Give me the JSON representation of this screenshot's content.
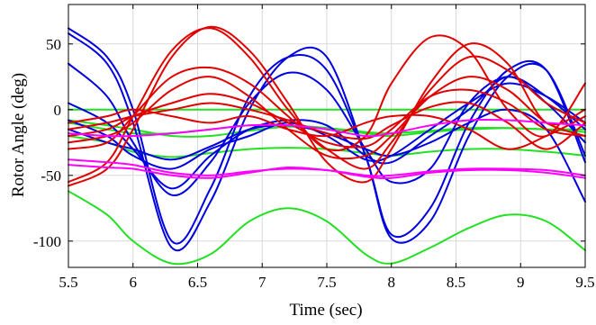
{
  "chart_data": {
    "type": "line",
    "title": "",
    "xlabel": "Time (sec)",
    "ylabel": "Rotor Angle (deg)",
    "xlim": [
      5.5,
      9.5
    ],
    "ylim": [
      -120,
      80
    ],
    "x_ticks": [
      5.5,
      6,
      6.5,
      7,
      7.5,
      8,
      8.5,
      9,
      9.5
    ],
    "x_tick_labels": [
      "5.5",
      "6",
      "6.5",
      "7",
      "7.5",
      "8",
      "8.5",
      "9",
      "9.5"
    ],
    "y_ticks": [
      -100,
      -50,
      0,
      50
    ],
    "y_tick_labels": [
      "-100",
      "-50",
      "0",
      "50"
    ],
    "grid": true,
    "legend": null,
    "colors": {
      "blue": "#0000e0",
      "red": "#e00000",
      "green": "#22e022",
      "magenta": "#ff00ff"
    },
    "series": [
      {
        "color": "blue",
        "x": [
          5.5,
          5.8,
          6.0,
          6.3,
          6.6,
          6.9,
          7.2,
          7.5,
          7.8,
          8.0,
          8.3,
          8.6,
          8.9,
          9.2,
          9.5
        ],
        "y": [
          62,
          40,
          0,
          -100,
          -60,
          10,
          40,
          30,
          -35,
          -95,
          -75,
          -10,
          30,
          30,
          -40
        ]
      },
      {
        "color": "blue",
        "x": [
          5.5,
          5.8,
          6.0,
          6.3,
          6.6,
          6.9,
          7.2,
          7.5,
          7.8,
          8.0,
          8.3,
          8.6,
          8.9,
          9.2,
          9.5
        ],
        "y": [
          58,
          35,
          -10,
          -105,
          -70,
          0,
          40,
          40,
          -35,
          -98,
          -85,
          -20,
          25,
          30,
          -35
        ]
      },
      {
        "color": "blue",
        "x": [
          5.5,
          5.8,
          6.0,
          6.3,
          6.6,
          6.9,
          7.2,
          7.5,
          7.8,
          8.0,
          8.3,
          8.6,
          8.9,
          9.2,
          9.5
        ],
        "y": [
          35,
          10,
          -25,
          -65,
          -40,
          5,
          28,
          15,
          -30,
          -55,
          -45,
          5,
          25,
          10,
          -15
        ]
      },
      {
        "color": "blue",
        "x": [
          5.5,
          5.8,
          6.0,
          6.3,
          6.6,
          6.9,
          7.2,
          7.5,
          7.8,
          8.0,
          8.3,
          8.6,
          8.9,
          9.2,
          9.5
        ],
        "y": [
          5,
          -10,
          -30,
          -60,
          -35,
          -15,
          -8,
          -12,
          -35,
          -40,
          -20,
          0,
          25,
          5,
          -25
        ]
      },
      {
        "color": "blue",
        "x": [
          5.5,
          5.8,
          6.0,
          6.3,
          6.6,
          6.9,
          7.2,
          7.5,
          7.8,
          8.0,
          8.3,
          8.6,
          8.9,
          9.2,
          9.5
        ],
        "y": [
          -8,
          -20,
          -35,
          -45,
          -30,
          -20,
          -10,
          -20,
          -38,
          -35,
          -15,
          5,
          20,
          10,
          -10
        ]
      },
      {
        "color": "blue",
        "x": [
          5.5,
          5.8,
          6.0,
          6.3,
          6.6,
          6.9,
          7.2,
          7.5,
          7.8,
          8.0,
          8.3,
          8.6,
          8.9,
          9.2,
          9.5
        ],
        "y": [
          -15,
          -25,
          -30,
          -38,
          -28,
          -15,
          -12,
          -18,
          -30,
          -35,
          -25,
          -10,
          0,
          -15,
          -70
        ]
      },
      {
        "color": "red",
        "x": [
          5.5,
          5.8,
          6.0,
          6.3,
          6.6,
          6.9,
          7.2,
          7.5,
          7.8,
          8.0,
          8.3,
          8.6,
          8.9,
          9.2,
          9.5
        ],
        "y": [
          -55,
          -40,
          -5,
          45,
          62,
          40,
          0,
          -30,
          -20,
          20,
          55,
          45,
          0,
          -20,
          20
        ]
      },
      {
        "color": "red",
        "x": [
          5.5,
          5.8,
          6.0,
          6.3,
          6.6,
          6.9,
          7.2,
          7.5,
          7.8,
          8.0,
          8.3,
          8.6,
          8.9,
          9.2,
          9.5
        ],
        "y": [
          -58,
          -45,
          -15,
          40,
          63,
          45,
          5,
          -40,
          -55,
          -30,
          20,
          50,
          35,
          -10,
          0
        ]
      },
      {
        "color": "red",
        "x": [
          5.5,
          5.8,
          6.0,
          6.3,
          6.6,
          6.9,
          7.2,
          7.5,
          7.8,
          8.0,
          8.3,
          8.6,
          8.9,
          9.2,
          9.5
        ],
        "y": [
          -30,
          -25,
          -5,
          25,
          32,
          20,
          -5,
          -30,
          -45,
          -25,
          15,
          40,
          30,
          5,
          -10
        ]
      },
      {
        "color": "red",
        "x": [
          5.5,
          5.8,
          6.0,
          6.3,
          6.6,
          6.9,
          7.2,
          7.5,
          7.8,
          8.0,
          8.3,
          8.6,
          8.9,
          9.2,
          9.5
        ],
        "y": [
          -25,
          -20,
          -10,
          15,
          25,
          10,
          -15,
          -35,
          -35,
          -20,
          10,
          25,
          15,
          -10,
          -20
        ]
      },
      {
        "color": "red",
        "x": [
          5.5,
          5.8,
          6.0,
          6.3,
          6.6,
          6.9,
          7.2,
          7.5,
          7.8,
          8.0,
          8.3,
          8.6,
          8.9,
          9.2,
          9.5
        ],
        "y": [
          -20,
          -15,
          -5,
          5,
          12,
          5,
          -10,
          -25,
          -28,
          -15,
          10,
          15,
          5,
          -15,
          -20
        ]
      },
      {
        "color": "red",
        "x": [
          5.5,
          5.8,
          6.0,
          6.3,
          6.6,
          6.9,
          7.2,
          7.5,
          7.8,
          8.0,
          8.3,
          8.6,
          8.9,
          9.2,
          9.5
        ],
        "y": [
          -15,
          -10,
          -5,
          0,
          5,
          0,
          -8,
          -18,
          -22,
          -12,
          2,
          5,
          -10,
          -30,
          -10
        ]
      },
      {
        "color": "red",
        "x": [
          5.5,
          5.8,
          6.0,
          6.3,
          6.6,
          6.9,
          7.2,
          7.5,
          7.8,
          8.0,
          8.3,
          8.6,
          8.9,
          9.2,
          9.5
        ],
        "y": [
          -10,
          -5,
          0,
          -5,
          -10,
          -5,
          -15,
          -20,
          -10,
          -5,
          -5,
          -15,
          -30,
          -20,
          -5
        ]
      },
      {
        "color": "green",
        "x": [
          5.5,
          6.0,
          6.5,
          7.0,
          7.5,
          8.0,
          8.5,
          9.0,
          9.5
        ],
        "y": [
          0,
          0,
          0,
          0,
          0,
          0,
          0,
          0,
          0
        ]
      },
      {
        "color": "green",
        "x": [
          5.5,
          5.8,
          6.0,
          6.3,
          6.6,
          6.9,
          7.2,
          7.5,
          7.8,
          8.0,
          8.3,
          8.6,
          8.9,
          9.2,
          9.5
        ],
        "y": [
          -62,
          -80,
          -100,
          -117,
          -110,
          -85,
          -75,
          -85,
          -110,
          -117,
          -105,
          -90,
          -80,
          -85,
          -107
        ]
      },
      {
        "color": "green",
        "x": [
          5.5,
          5.8,
          6.0,
          6.3,
          6.6,
          6.9,
          7.2,
          7.5,
          7.8,
          8.0,
          8.3,
          8.6,
          8.9,
          9.2,
          9.5
        ],
        "y": [
          -20,
          -25,
          -32,
          -36,
          -33,
          -30,
          -29,
          -30,
          -33,
          -35,
          -32,
          -30,
          -30,
          -32,
          -35
        ]
      },
      {
        "color": "green",
        "x": [
          5.5,
          5.8,
          6.0,
          6.3,
          6.6,
          6.9,
          7.2,
          7.5,
          7.8,
          8.0,
          8.3,
          8.6,
          8.9,
          9.2,
          9.5
        ],
        "y": [
          -10,
          -15,
          -18,
          -18,
          -15,
          -12,
          -12,
          -14,
          -18,
          -20,
          -17,
          -15,
          -14,
          -15,
          -17
        ]
      },
      {
        "color": "green",
        "x": [
          5.5,
          5.8,
          6.0,
          6.3,
          6.6,
          6.9,
          7.2,
          7.5,
          7.8,
          8.0,
          8.3,
          8.6,
          8.9,
          9.2,
          9.5
        ],
        "y": [
          -8,
          -12,
          -15,
          -20,
          -20,
          -16,
          -13,
          -14,
          -17,
          -18,
          -16,
          -14,
          -14,
          -15,
          -15
        ]
      },
      {
        "color": "magenta",
        "x": [
          5.5,
          5.8,
          6.0,
          6.3,
          6.6,
          6.9,
          7.2,
          7.5,
          7.8,
          8.0,
          8.3,
          8.6,
          8.9,
          9.2,
          9.5
        ],
        "y": [
          -38,
          -40,
          -42,
          -48,
          -50,
          -47,
          -45,
          -46,
          -50,
          -50,
          -47,
          -45,
          -45,
          -46,
          -50
        ]
      },
      {
        "color": "magenta",
        "x": [
          5.5,
          5.8,
          6.0,
          6.3,
          6.6,
          6.9,
          7.2,
          7.5,
          7.8,
          8.0,
          8.3,
          8.6,
          8.9,
          9.2,
          9.5
        ],
        "y": [
          -42,
          -44,
          -45,
          -50,
          -52,
          -48,
          -44,
          -46,
          -51,
          -52,
          -48,
          -46,
          -46,
          -48,
          -52
        ]
      },
      {
        "color": "magenta",
        "x": [
          5.5,
          5.8,
          6.0,
          6.3,
          6.6,
          6.9,
          7.2,
          7.5,
          7.8,
          8.0,
          8.3,
          8.6,
          8.9,
          9.2,
          9.5
        ],
        "y": [
          -18,
          -20,
          -20,
          -18,
          -15,
          -12,
          -12,
          -15,
          -20,
          -18,
          -12,
          -8,
          -8,
          -10,
          -12
        ]
      }
    ]
  }
}
